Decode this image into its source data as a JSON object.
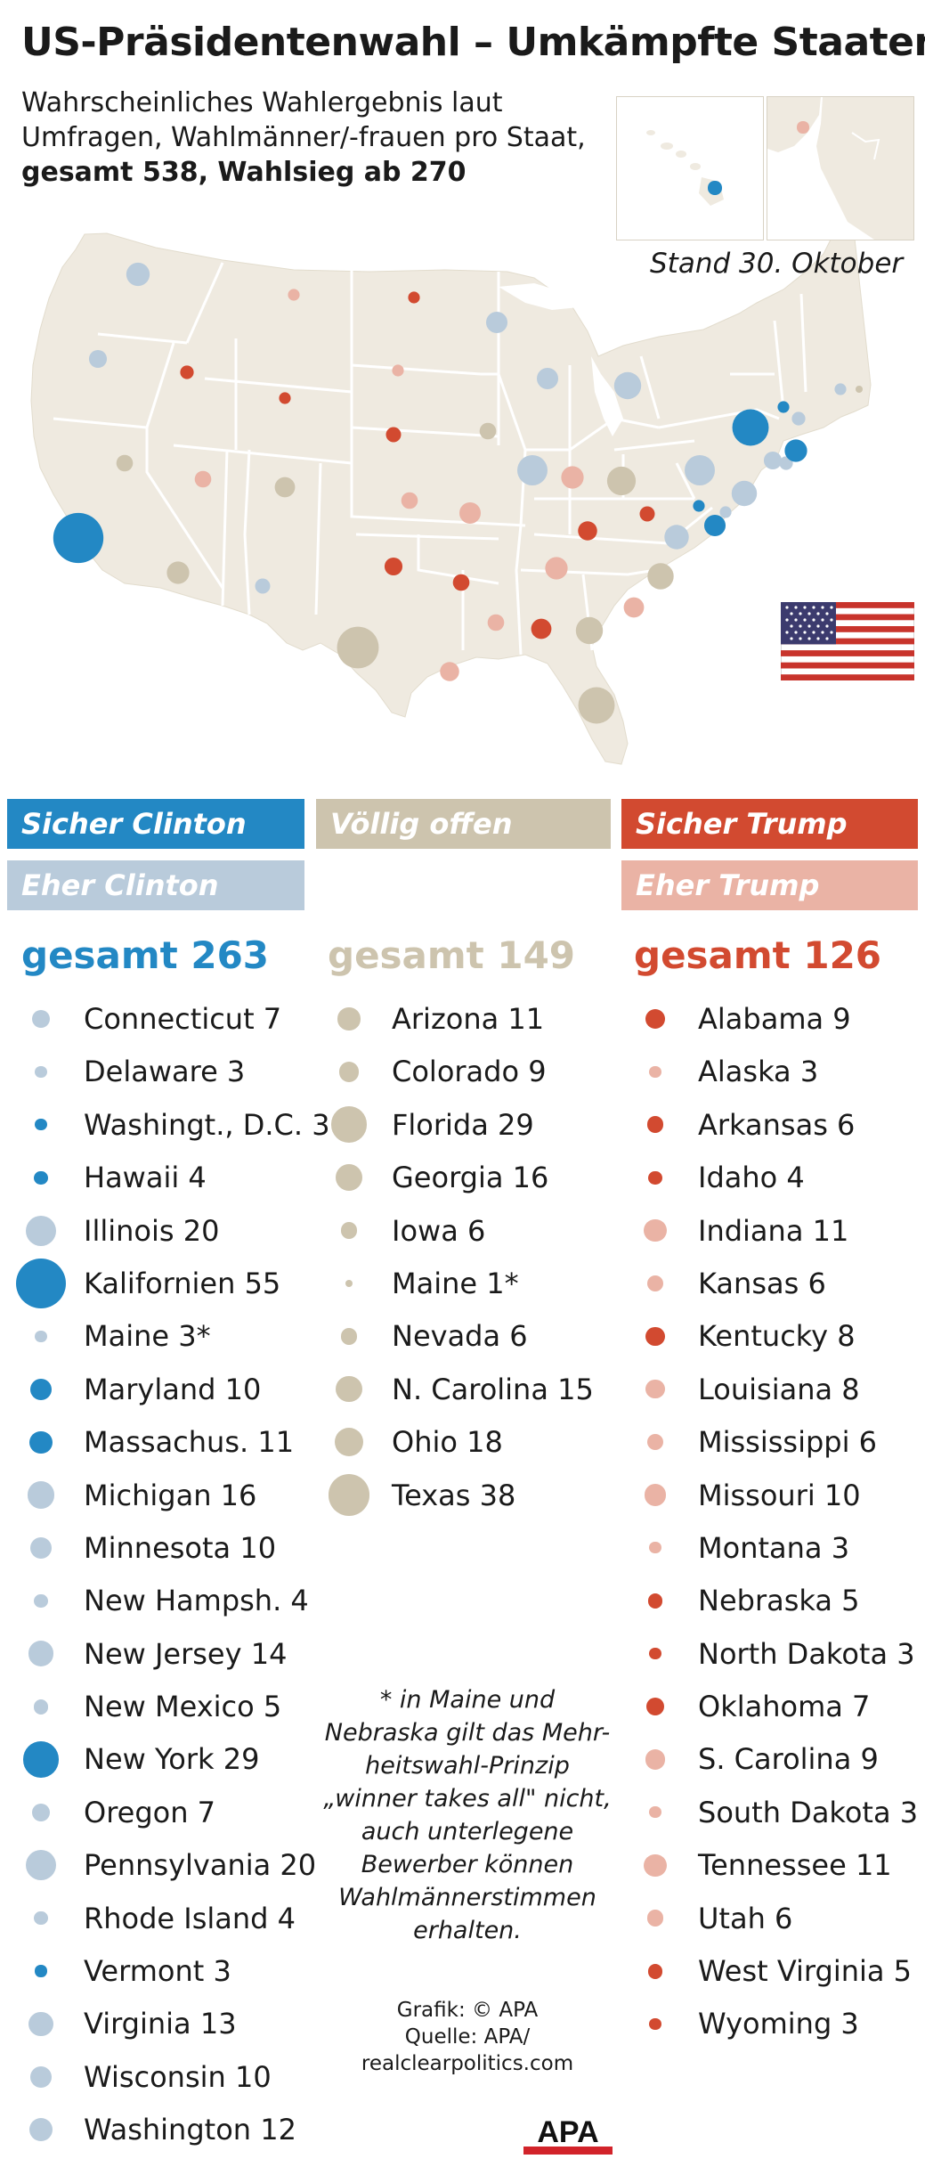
{
  "header": {
    "title": "US-Präsidentenwahl – Umkämpfte Staaten",
    "subtitle_line1": "Wahrscheinliches Wahlergebnis laut",
    "subtitle_line2": "Umfragen, Wahlmänner/-frauen pro Staat,",
    "subtitle_line3": "gesamt 538, Wahlsieg ab 270",
    "date": "Stand 30. Oktober"
  },
  "colors": {
    "safe_clinton": "#2388c4",
    "lean_clinton": "#b9cbdb",
    "tossup": "#cdc4ae",
    "safe_trump": "#d24a30",
    "lean_trump": "#eab3a5",
    "land": "#efeae0",
    "border": "#ffffff"
  },
  "legend": {
    "safe_clinton": "Sicher Clinton",
    "lean_clinton": "Eher Clinton",
    "tossup": "Völlig offen",
    "safe_trump": "Sicher Trump",
    "lean_trump": "Eher Trump"
  },
  "totals": {
    "clinton": "gesamt 263",
    "tossup": "gesamt 149",
    "trump": "gesamt 126"
  },
  "clinton_states": [
    {
      "label": "Connecticut 7",
      "votes": 7,
      "cat": "lean_clinton"
    },
    {
      "label": "Delaware 3",
      "votes": 3,
      "cat": "lean_clinton"
    },
    {
      "label": "Washingt., D.C. 3",
      "votes": 3,
      "cat": "safe_clinton"
    },
    {
      "label": "Hawaii 4",
      "votes": 4,
      "cat": "safe_clinton"
    },
    {
      "label": "Illinois 20",
      "votes": 20,
      "cat": "lean_clinton"
    },
    {
      "label": "Kalifornien 55",
      "votes": 55,
      "cat": "safe_clinton"
    },
    {
      "label": "Maine 3*",
      "votes": 3,
      "cat": "lean_clinton"
    },
    {
      "label": "Maryland 10",
      "votes": 10,
      "cat": "safe_clinton"
    },
    {
      "label": "Massachus. 11",
      "votes": 11,
      "cat": "safe_clinton"
    },
    {
      "label": "Michigan 16",
      "votes": 16,
      "cat": "lean_clinton"
    },
    {
      "label": "Minnesota 10",
      "votes": 10,
      "cat": "lean_clinton"
    },
    {
      "label": "New Hampsh. 4",
      "votes": 4,
      "cat": "lean_clinton"
    },
    {
      "label": "New Jersey 14",
      "votes": 14,
      "cat": "lean_clinton"
    },
    {
      "label": "New Mexico 5",
      "votes": 5,
      "cat": "lean_clinton"
    },
    {
      "label": "New York 29",
      "votes": 29,
      "cat": "safe_clinton"
    },
    {
      "label": "Oregon 7",
      "votes": 7,
      "cat": "lean_clinton"
    },
    {
      "label": "Pennsylvania 20",
      "votes": 20,
      "cat": "lean_clinton"
    },
    {
      "label": "Rhode Island 4",
      "votes": 4,
      "cat": "lean_clinton"
    },
    {
      "label": "Vermont 3",
      "votes": 3,
      "cat": "safe_clinton"
    },
    {
      "label": "Virginia 13",
      "votes": 13,
      "cat": "lean_clinton"
    },
    {
      "label": "Wisconsin 10",
      "votes": 10,
      "cat": "lean_clinton"
    },
    {
      "label": "Washington 12",
      "votes": 12,
      "cat": "lean_clinton"
    }
  ],
  "tossup_states": [
    {
      "label": "Arizona 11",
      "votes": 11,
      "cat": "tossup"
    },
    {
      "label": "Colorado 9",
      "votes": 9,
      "cat": "tossup"
    },
    {
      "label": "Florida 29",
      "votes": 29,
      "cat": "tossup"
    },
    {
      "label": "Georgia 16",
      "votes": 16,
      "cat": "tossup"
    },
    {
      "label": "Iowa 6",
      "votes": 6,
      "cat": "tossup"
    },
    {
      "label": "Maine 1*",
      "votes": 1,
      "cat": "tossup"
    },
    {
      "label": "Nevada 6",
      "votes": 6,
      "cat": "tossup"
    },
    {
      "label": "N. Carolina 15",
      "votes": 15,
      "cat": "tossup"
    },
    {
      "label": "Ohio 18",
      "votes": 18,
      "cat": "tossup"
    },
    {
      "label": "Texas 38",
      "votes": 38,
      "cat": "tossup"
    }
  ],
  "trump_states": [
    {
      "label": "Alabama 9",
      "votes": 9,
      "cat": "safe_trump"
    },
    {
      "label": "Alaska 3",
      "votes": 3,
      "cat": "lean_trump"
    },
    {
      "label": "Arkansas 6",
      "votes": 6,
      "cat": "safe_trump"
    },
    {
      "label": "Idaho 4",
      "votes": 4,
      "cat": "safe_trump"
    },
    {
      "label": "Indiana 11",
      "votes": 11,
      "cat": "lean_trump"
    },
    {
      "label": "Kansas 6",
      "votes": 6,
      "cat": "lean_trump"
    },
    {
      "label": "Kentucky 8",
      "votes": 8,
      "cat": "safe_trump"
    },
    {
      "label": "Louisiana 8",
      "votes": 8,
      "cat": "lean_trump"
    },
    {
      "label": "Mississippi 6",
      "votes": 6,
      "cat": "lean_trump"
    },
    {
      "label": "Missouri 10",
      "votes": 10,
      "cat": "lean_trump"
    },
    {
      "label": "Montana 3",
      "votes": 3,
      "cat": "lean_trump"
    },
    {
      "label": "Nebraska 5",
      "votes": 5,
      "cat": "safe_trump"
    },
    {
      "label": "North Dakota 3",
      "votes": 3,
      "cat": "safe_trump"
    },
    {
      "label": "Oklahoma 7",
      "votes": 7,
      "cat": "safe_trump"
    },
    {
      "label": "S. Carolina 9",
      "votes": 9,
      "cat": "lean_trump"
    },
    {
      "label": "South Dakota 3",
      "votes": 3,
      "cat": "lean_trump"
    },
    {
      "label": "Tennessee 11",
      "votes": 11,
      "cat": "lean_trump"
    },
    {
      "label": "Utah 6",
      "votes": 6,
      "cat": "lean_trump"
    },
    {
      "label": "West Virginia 5",
      "votes": 5,
      "cat": "safe_trump"
    },
    {
      "label": "Wyoming 3",
      "votes": 3,
      "cat": "safe_trump"
    }
  ],
  "map_markers": [
    {
      "state": "Washington",
      "votes": 12,
      "cat": "lean_clinton"
    },
    {
      "state": "Oregon",
      "votes": 7,
      "cat": "lean_clinton"
    },
    {
      "state": "Kalifornien",
      "votes": 55,
      "cat": "safe_clinton"
    },
    {
      "state": "Nevada",
      "votes": 6,
      "cat": "tossup"
    },
    {
      "state": "Idaho",
      "votes": 4,
      "cat": "safe_trump"
    },
    {
      "state": "Montana",
      "votes": 3,
      "cat": "lean_trump"
    },
    {
      "state": "Wyoming",
      "votes": 3,
      "cat": "safe_trump"
    },
    {
      "state": "Utah",
      "votes": 6,
      "cat": "lean_trump"
    },
    {
      "state": "Colorado",
      "votes": 9,
      "cat": "tossup"
    },
    {
      "state": "Arizona",
      "votes": 11,
      "cat": "tossup"
    },
    {
      "state": "New Mexico",
      "votes": 5,
      "cat": "lean_clinton"
    },
    {
      "state": "North Dakota",
      "votes": 3,
      "cat": "safe_trump"
    },
    {
      "state": "South Dakota",
      "votes": 3,
      "cat": "lean_trump"
    },
    {
      "state": "Nebraska",
      "votes": 5,
      "cat": "safe_trump"
    },
    {
      "state": "Kansas",
      "votes": 6,
      "cat": "lean_trump"
    },
    {
      "state": "Oklahoma",
      "votes": 7,
      "cat": "safe_trump"
    },
    {
      "state": "Texas",
      "votes": 38,
      "cat": "tossup"
    },
    {
      "state": "Minnesota",
      "votes": 10,
      "cat": "lean_clinton"
    },
    {
      "state": "Iowa",
      "votes": 6,
      "cat": "tossup"
    },
    {
      "state": "Missouri",
      "votes": 10,
      "cat": "lean_trump"
    },
    {
      "state": "Arkansas",
      "votes": 6,
      "cat": "safe_trump"
    },
    {
      "state": "Louisiana",
      "votes": 8,
      "cat": "lean_trump"
    },
    {
      "state": "Wisconsin",
      "votes": 10,
      "cat": "lean_clinton"
    },
    {
      "state": "Illinois",
      "votes": 20,
      "cat": "lean_clinton"
    },
    {
      "state": "Michigan",
      "votes": 16,
      "cat": "lean_clinton"
    },
    {
      "state": "Indiana",
      "votes": 11,
      "cat": "lean_trump"
    },
    {
      "state": "Ohio",
      "votes": 18,
      "cat": "tossup"
    },
    {
      "state": "Kentucky",
      "votes": 8,
      "cat": "safe_trump"
    },
    {
      "state": "Tennessee",
      "votes": 11,
      "cat": "lean_trump"
    },
    {
      "state": "Mississippi",
      "votes": 6,
      "cat": "lean_trump"
    },
    {
      "state": "Alabama",
      "votes": 9,
      "cat": "safe_trump"
    },
    {
      "state": "Georgia",
      "votes": 16,
      "cat": "tossup"
    },
    {
      "state": "Florida",
      "votes": 29,
      "cat": "tossup"
    },
    {
      "state": "S. Carolina",
      "votes": 9,
      "cat": "lean_trump"
    },
    {
      "state": "N. Carolina",
      "votes": 15,
      "cat": "tossup"
    },
    {
      "state": "Virginia",
      "votes": 13,
      "cat": "lean_clinton"
    },
    {
      "state": "West Virginia",
      "votes": 5,
      "cat": "safe_trump"
    },
    {
      "state": "Pennsylvania",
      "votes": 20,
      "cat": "lean_clinton"
    },
    {
      "state": "New York",
      "votes": 29,
      "cat": "safe_clinton"
    },
    {
      "state": "Maryland",
      "votes": 10,
      "cat": "safe_clinton"
    },
    {
      "state": "Washingt., D.C.",
      "votes": 3,
      "cat": "safe_clinton"
    },
    {
      "state": "Delaware",
      "votes": 3,
      "cat": "lean_clinton"
    },
    {
      "state": "New Jersey",
      "votes": 14,
      "cat": "lean_clinton"
    },
    {
      "state": "Connecticut",
      "votes": 7,
      "cat": "lean_clinton"
    },
    {
      "state": "Rhode Island",
      "votes": 4,
      "cat": "lean_clinton"
    },
    {
      "state": "Massachus.",
      "votes": 11,
      "cat": "safe_clinton"
    },
    {
      "state": "Vermont",
      "votes": 3,
      "cat": "safe_clinton"
    },
    {
      "state": "New Hampsh.",
      "votes": 4,
      "cat": "lean_clinton"
    },
    {
      "state": "Maine",
      "votes": 3,
      "cat": "lean_clinton"
    },
    {
      "state": "Maine",
      "votes": 1,
      "cat": "tossup"
    },
    {
      "state": "Hawaii",
      "votes": 4,
      "cat": "safe_clinton"
    },
    {
      "state": "Alaska",
      "votes": 3,
      "cat": "lean_trump"
    }
  ],
  "footnote": {
    "line1": "* in Maine und",
    "line2": "Nebraska gilt das Mehr-",
    "line3": "heitswahl-Prinzip",
    "line4": "„winner takes all\" nicht,",
    "line5": "auch unterlegene",
    "line6": "Bewerber können",
    "line7": "Wahlmännerstimmen",
    "line8": "erhalten."
  },
  "credits": {
    "grafik": "Grafik: © APA",
    "quelle": "Quelle: APA/",
    "source": "realclearpolitics.com"
  },
  "logo_text": "APA"
}
